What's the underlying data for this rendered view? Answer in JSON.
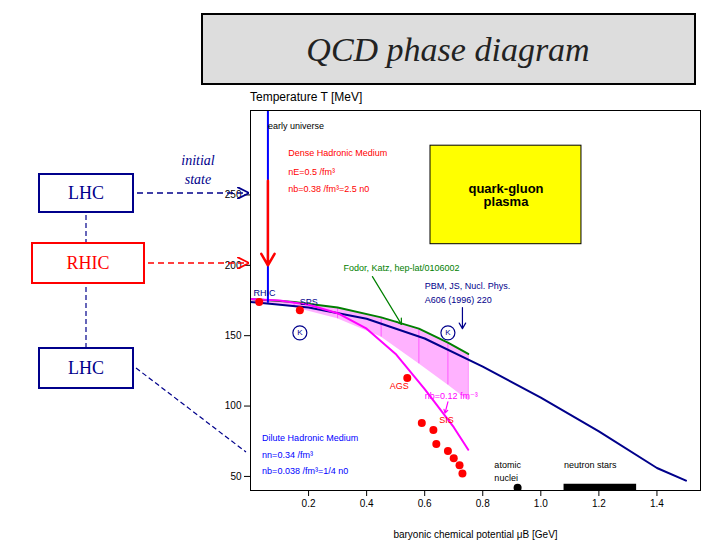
{
  "chart_data": {
    "type": "line",
    "title": "QCD phase diagram",
    "x_label": "baryonic chemical potential μB [GeV]",
    "y_label": "Temperature T [MeV]",
    "xlim": [
      0,
      1.55
    ],
    "ylim": [
      40,
      310
    ],
    "xticks": [
      0.2,
      0.4,
      0.6,
      0.8,
      {
        "value": 1,
        "label": "1.0"
      },
      1.2,
      1.4
    ],
    "yticks": [
      50,
      100,
      150,
      200,
      250
    ],
    "series": [
      {
        "type": "area",
        "color": "magenta",
        "x": [
          0.0,
          0.15,
          0.3,
          0.45,
          0.58,
          0.68,
          0.75
        ],
        "lower": [
          174,
          170,
          162,
          149,
          130,
          115,
          104
        ],
        "values": [
          176,
          174,
          170,
          163,
          155,
          145,
          137
        ]
      },
      {
        "type": "line",
        "color": "green",
        "x": [
          0.0,
          0.15,
          0.3,
          0.45,
          0.58,
          0.68,
          0.75
        ],
        "values": [
          176,
          174,
          170,
          163,
          155,
          145,
          137
        ]
      },
      {
        "type": "line",
        "color": "darkblue",
        "x": [
          0.0,
          0.2,
          0.4,
          0.6,
          0.8,
          1.0,
          1.2,
          1.4,
          1.5
        ],
        "values": [
          174,
          170,
          162,
          148,
          128,
          106,
          82,
          56,
          47
        ]
      },
      {
        "type": "line",
        "color": "magenta",
        "x": [
          0.0,
          0.1,
          0.2,
          0.3,
          0.4,
          0.5,
          0.6,
          0.7,
          0.75
        ],
        "values": [
          176,
          175,
          172,
          166,
          155,
          137,
          112,
          85,
          69
        ]
      },
      {
        "type": "line",
        "color": "blue",
        "x": [
          0.06,
          0.06
        ],
        "values": [
          174,
          310
        ]
      },
      {
        "type": "rect",
        "color": "yellow",
        "text": "quark-gluon\nplasma",
        "x": [
          0.62
        ],
        "x2": [
          1.14
        ],
        "values": [
          215
        ],
        "values2": [
          285
        ]
      },
      {
        "type": "bar",
        "orientation": "horizontal",
        "color": "black",
        "y": [
          42
        ],
        "x": [
          1.08
        ],
        "x2": [
          1.33
        ]
      },
      {
        "type": "scatter",
        "color": "red",
        "x": [
          0.03,
          0.17,
          0.54,
          0.59,
          0.63,
          0.64,
          0.68,
          0.7,
          0.72,
          0.73
        ],
        "values": [
          174,
          168,
          120,
          88,
          83,
          73,
          68,
          63,
          58,
          52
        ]
      },
      {
        "type": "scatter",
        "marker": "open_circle",
        "color": "darkblue",
        "x": [
          0.17,
          0.68
        ],
        "values": [
          152,
          152
        ],
        "labels": [
          "K",
          "K"
        ]
      },
      {
        "type": "scatter",
        "color": "black",
        "x": [
          0.92
        ],
        "values": [
          42
        ]
      },
      {
        "type": "arrow",
        "color": "green",
        "x": [
          0.42,
          0.52
        ],
        "values": [
          192,
          158
        ]
      },
      {
        "type": "arrow",
        "color": "darkblue",
        "x": [
          0.73,
          0.73
        ],
        "values": [
          170,
          155
        ]
      },
      {
        "type": "arrow",
        "color": "magenta",
        "x": [
          0.68,
          0.67
        ],
        "values": [
          103,
          95
        ]
      },
      {
        "type": "arrow",
        "color": "red",
        "x": [
          0.06,
          0.06
        ],
        "values": [
          260,
          200
        ]
      }
    ],
    "annotations": [
      {
        "text": "early universe",
        "x": 0.06,
        "y": 297,
        "color": "black"
      },
      {
        "text": "Dense Hadronic Medium",
        "x": 0.13,
        "y": 278,
        "color": "red"
      },
      {
        "text": "nE=0.5 /fm³",
        "x": 0.13,
        "y": 264,
        "color": "red"
      },
      {
        "text": "nb=0.38 /fm³=2.5 n0",
        "x": 0.13,
        "y": 252,
        "color": "red"
      },
      {
        "text": "Dilute Hadronic Medium",
        "x": 0.04,
        "y": 75,
        "color": "blue"
      },
      {
        "text": "nn=0.34 /fm³",
        "x": 0.04,
        "y": 63,
        "color": "blue"
      },
      {
        "text": "nb=0.038 /fm³=1/4 n0",
        "x": 0.04,
        "y": 52,
        "color": "blue"
      },
      {
        "text": "Fodor, Katz, hep-lat/0106002",
        "x": 0.32,
        "y": 196,
        "color": "green"
      },
      {
        "text": "PBM, JS, Nucl. Phys.",
        "x": 0.6,
        "y": 183,
        "color": "darkblue"
      },
      {
        "text": "A606 (1996) 220",
        "x": 0.6,
        "y": 173,
        "color": "darkblue"
      },
      {
        "text": "nb=0.12 fm⁻³",
        "x": 0.6,
        "y": 105,
        "color": "magenta"
      },
      {
        "text": "RHIC",
        "x": 0.01,
        "y": 178,
        "color": "darkblue"
      },
      {
        "text": "SPS",
        "x": 0.17,
        "y": 172,
        "color": "darkblue"
      },
      {
        "text": "AGS",
        "x": 0.48,
        "y": 112,
        "color": "red"
      },
      {
        "text": "SIS",
        "x": 0.65,
        "y": 88,
        "color": "red"
      },
      {
        "text": "atomic",
        "x": 0.84,
        "y": 56,
        "color": "black"
      },
      {
        "text": "nuclei",
        "x": 0.84,
        "y": 47,
        "color": "black"
      },
      {
        "text": "neutron stars",
        "x": 1.08,
        "y": 56,
        "color": "black"
      }
    ],
    "side_boxes": [
      {
        "text": "LHC",
        "color": "darkblue"
      },
      {
        "text": "RHIC",
        "color": "red"
      },
      {
        "text": "LHC",
        "color": "darkblue"
      }
    ],
    "side_text": {
      "text": "initial\nstate",
      "color": "darkblue"
    }
  }
}
